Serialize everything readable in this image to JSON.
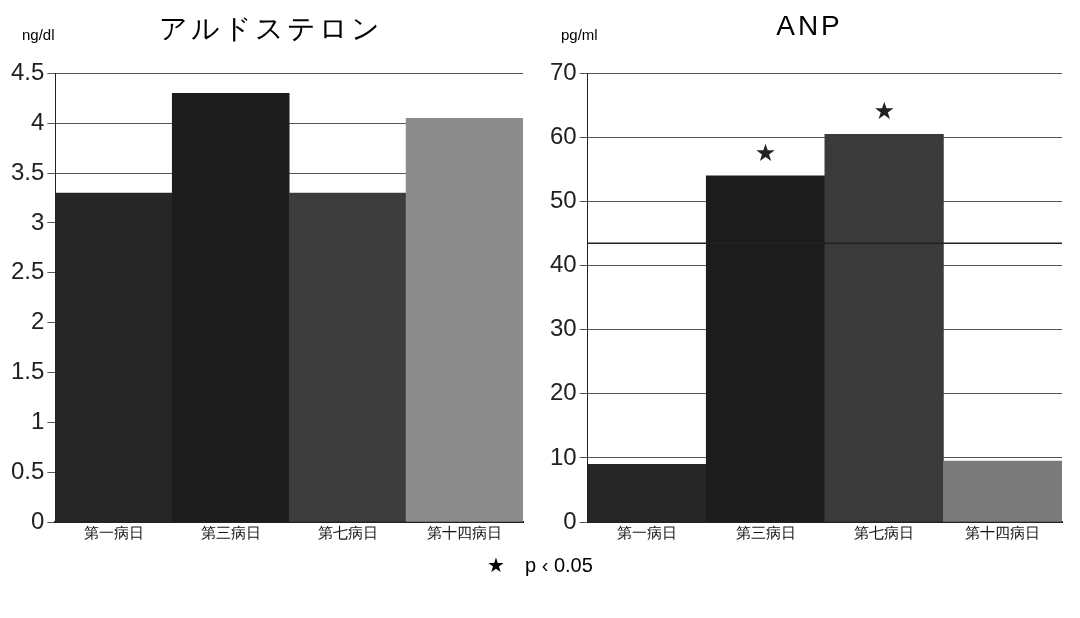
{
  "chart_data": [
    {
      "type": "bar",
      "title": "アルドステロン",
      "ylabel": "ng/dl",
      "categories": [
        "第一病日",
        "第三病日",
        "第七病日",
        "第十四病日"
      ],
      "values": [
        3.3,
        4.3,
        3.3,
        4.05
      ],
      "colors": [
        "#262626",
        "#1c1c1c",
        "#3c3c3c",
        "#8c8c8c"
      ],
      "ylim": [
        0,
        4.5
      ],
      "yticks": [
        0,
        0.5,
        1,
        1.5,
        2,
        2.5,
        3,
        3.5,
        4,
        4.5
      ],
      "grid": "y",
      "legend": false
    },
    {
      "type": "bar",
      "title": "ANP",
      "ylabel": "pg/ml",
      "categories": [
        "第一病日",
        "第三病日",
        "第七病日",
        "第十四病日"
      ],
      "values": [
        9,
        54,
        60.5,
        9.5
      ],
      "colors": [
        "#262626",
        "#1c1c1c",
        "#3a3a3a",
        "#7a7a7a"
      ],
      "ylim": [
        0,
        70
      ],
      "yticks": [
        0,
        10,
        20,
        30,
        40,
        50,
        60,
        70
      ],
      "grid": "y",
      "legend": false,
      "ref_lines": [
        {
          "axis": "y",
          "value": 43.5,
          "color": "#222222"
        }
      ],
      "annotations": [
        {
          "text": "★",
          "x": "第三病日",
          "y": 54
        },
        {
          "text": "★",
          "x": "第七病日",
          "y": 60.5
        },
        "★　p ‹ 0.05"
      ]
    }
  ]
}
